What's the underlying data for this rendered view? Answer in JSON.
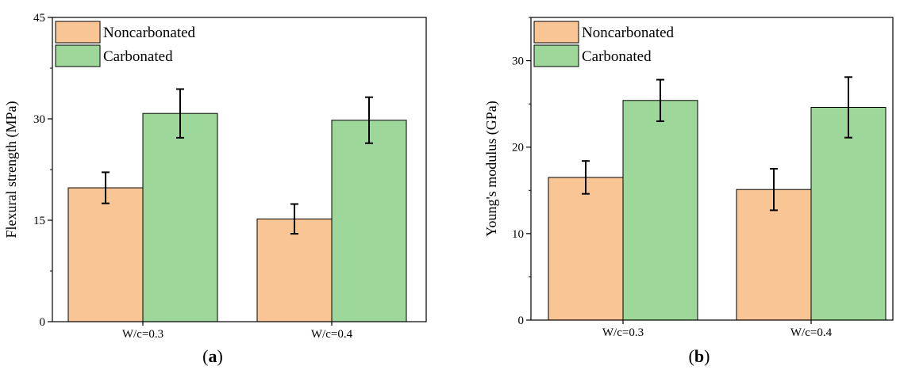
{
  "colors": {
    "noncarbonated": "#f9c594",
    "carbonated": "#9dd799",
    "stroke": "#000000"
  },
  "chart_data": [
    {
      "type": "bar",
      "panel_label": {
        "open": "(",
        "letter": "a",
        "close": ")"
      },
      "categories": [
        "W/c=0.3",
        "W/c=0.4"
      ],
      "ylabel": "Flexural strength (MPa)",
      "xlabel": "",
      "ylim": [
        0,
        45
      ],
      "yticks": [
        0,
        15,
        30,
        45
      ],
      "ytick_labels": [
        "0",
        "15",
        "30",
        "45"
      ],
      "legend_position": "top-left",
      "grid": false,
      "series": [
        {
          "name": "Noncarbonated",
          "color_key": "noncarbonated",
          "values": [
            19.8,
            15.2
          ],
          "errors": [
            2.3,
            2.2
          ]
        },
        {
          "name": "Carbonated",
          "color_key": "carbonated",
          "values": [
            30.8,
            29.8
          ],
          "errors": [
            3.6,
            3.4
          ]
        }
      ]
    },
    {
      "type": "bar",
      "panel_label": {
        "open": "(",
        "letter": "b",
        "close": ")"
      },
      "categories": [
        "W/c=0.3",
        "W/c=0.4"
      ],
      "ylabel": "Young's modulus (GPa)",
      "xlabel": "",
      "ylim": [
        0,
        35
      ],
      "yticks": [
        0,
        10,
        20,
        30
      ],
      "ytick_labels": [
        "0",
        "10",
        "20",
        "30"
      ],
      "legend_position": "top-left",
      "grid": false,
      "series": [
        {
          "name": "Noncarbonated",
          "color_key": "noncarbonated",
          "values": [
            16.5,
            15.1
          ],
          "errors": [
            1.9,
            2.4
          ]
        },
        {
          "name": "Carbonated",
          "color_key": "carbonated",
          "values": [
            25.4,
            24.6
          ],
          "errors": [
            2.4,
            3.5
          ]
        }
      ]
    }
  ]
}
